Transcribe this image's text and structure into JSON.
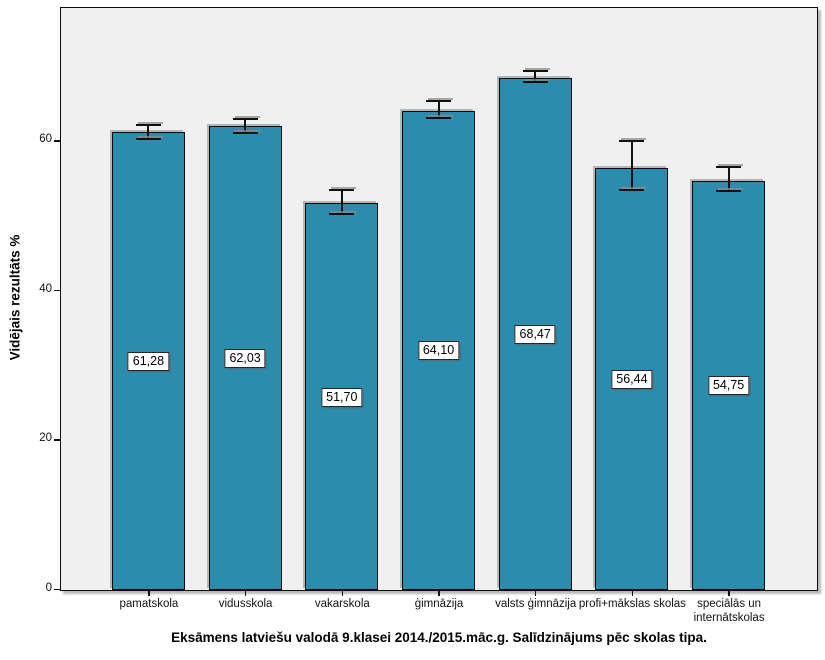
{
  "chart_data": {
    "type": "bar",
    "title": "Eksāmens latviešu valodā 9.klasei 2014./2015.māc.g. Salīdzinājums pēc skolas tipa.",
    "xlabel": "",
    "ylabel": "Vidējais rezultāts %",
    "categories": [
      "pamatskola",
      "vidusskola",
      "vakarskola",
      "ģimnāzija",
      "valsts ģimnāzija",
      "profi+mākslas skolas",
      "speciālās un internātskolas"
    ],
    "values": [
      61.28,
      62.03,
      51.7,
      64.1,
      68.47,
      56.44,
      54.75
    ],
    "value_labels": [
      "61,28",
      "62,03",
      "51,70",
      "64,10",
      "68,47",
      "56,44",
      "54,75"
    ],
    "error_low": [
      60.5,
      61.3,
      50.4,
      63.3,
      68.1,
      53.6,
      53.5
    ],
    "error_high": [
      62.1,
      62.9,
      53.4,
      65.3,
      69.3,
      59.9,
      56.5
    ],
    "yticks": [
      0,
      20,
      40,
      60
    ],
    "ytick_labels": [
      "0",
      "20",
      "40",
      "60"
    ],
    "ylim": [
      0,
      77.7
    ],
    "grid": false,
    "legend_position": "none",
    "bar_color": "#2B8CAD",
    "bar_border_color": "#0a0a0a",
    "plot_bg": "#f0f0f0",
    "figure_bg": "#ffffff",
    "label_box_bg": "#ffffff"
  }
}
